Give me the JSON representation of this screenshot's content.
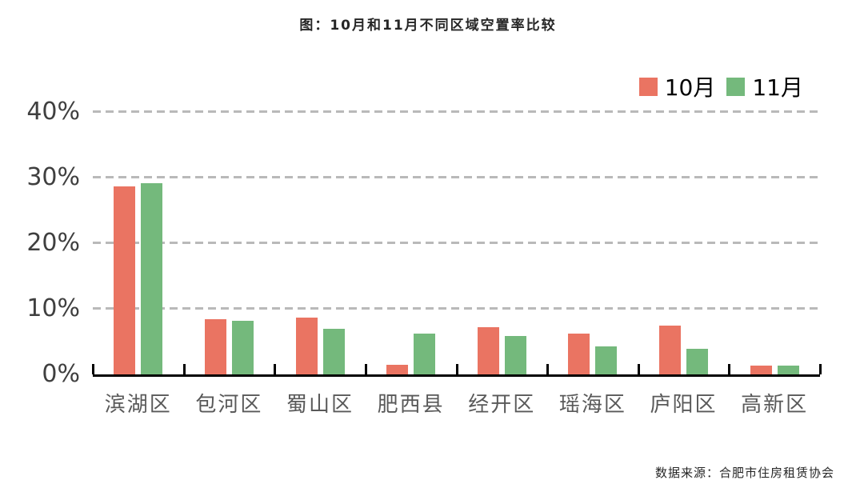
{
  "source_note": "数据来源：合肥市住房租赁协会",
  "colors": {
    "october_bar": "#EA7462",
    "november_bar": "#74B97C",
    "gridline": "#B9B9B9",
    "axis": "#000000",
    "title_text": "#262626",
    "ytick_text": "#3F3F3F",
    "xtick_text": "#595959"
  },
  "chart_data": {
    "type": "bar",
    "title": "图：10月和11月不同区域空置率比较",
    "categories": [
      "滨湖区",
      "包河区",
      "蜀山区",
      "肥西县",
      "经开区",
      "瑶海区",
      "庐阳区",
      "高新区"
    ],
    "series": [
      {
        "name": "10月",
        "color": "#EA7462",
        "values": [
          28.6,
          8.4,
          8.7,
          1.5,
          7.2,
          6.2,
          7.4,
          1.4
        ]
      },
      {
        "name": "11月",
        "color": "#74B97C",
        "values": [
          29.1,
          8.2,
          6.9,
          6.2,
          5.9,
          4.3,
          3.9,
          1.4
        ]
      }
    ],
    "xlabel": "",
    "ylabel": "",
    "ylim": [
      0,
      40
    ],
    "yticks": [
      0,
      10,
      20,
      30,
      40
    ],
    "ytick_labels": [
      "0%",
      "10%",
      "20%",
      "30%",
      "40%"
    ],
    "grid": "horizontal-dashed",
    "legend_position": "top-right"
  }
}
